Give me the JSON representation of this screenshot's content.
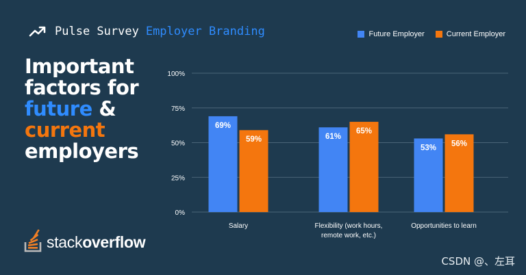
{
  "header": {
    "part1": "Pulse Survey",
    "part2": "Employer Branding"
  },
  "headline": {
    "line1": "Important",
    "line2": "factors for",
    "line3_highlight": "future",
    "line3_rest": " &",
    "line4_highlight": "current",
    "line5": "employers"
  },
  "logo": {
    "part1": "stack",
    "part2": "overflow"
  },
  "watermark": "CSDN @、左耳",
  "colors": {
    "future": "#4285f4",
    "current": "#f4760e",
    "background": "#1e3a4f",
    "grid": "#4b6578"
  },
  "chart_data": {
    "type": "bar",
    "categories": [
      [
        "Salary"
      ],
      [
        "Flexibility (work hours,",
        "remote work, etc.)"
      ],
      [
        "Opportunities to learn"
      ]
    ],
    "series": [
      {
        "name": "Future Employer",
        "values": [
          69,
          61,
          53
        ],
        "labels": [
          "69%",
          "61%",
          "53%"
        ]
      },
      {
        "name": "Current Employer",
        "values": [
          59,
          65,
          56
        ],
        "labels": [
          "59%",
          "65%",
          "56%"
        ]
      }
    ],
    "yticks": [
      0,
      25,
      50,
      75,
      100
    ],
    "ytick_labels": [
      "0%",
      "25%",
      "50%",
      "75%",
      "100%"
    ],
    "ylim": [
      0,
      100
    ],
    "legend_position": "top-right",
    "grid": true
  }
}
